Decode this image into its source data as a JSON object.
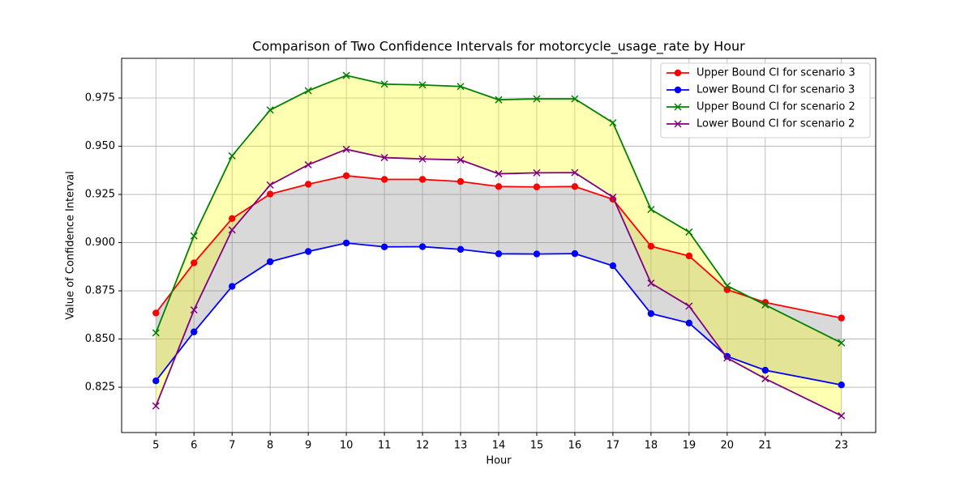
{
  "chart_data": {
    "type": "line",
    "title": "Comparison of Two Confidence Intervals for motorcycle_usage_rate by Hour",
    "x_label": "Hour",
    "y_label": "Value of Confidence Interval",
    "x": [
      5,
      6,
      7,
      8,
      9,
      10,
      11,
      12,
      13,
      14,
      15,
      16,
      17,
      18,
      19,
      20,
      21,
      23
    ],
    "xlim": [
      4.1,
      23.9
    ],
    "xticks": [
      5,
      6,
      7,
      8,
      9,
      10,
      11,
      12,
      13,
      14,
      15,
      16,
      17,
      18,
      19,
      20,
      21,
      23
    ],
    "ylim": [
      0.8015,
      0.9956
    ],
    "yticks": [
      0.825,
      {
        "value": 0.85,
        "label": "0.850"
      },
      0.875,
      {
        "value": 0.9,
        "label": "0.900"
      },
      0.925,
      {
        "value": 0.95,
        "label": "0.950"
      },
      0.975
    ],
    "grid": true,
    "legend": "upper right",
    "series": [
      {
        "name": "Upper Bound CI for scenario 3",
        "color": "red",
        "marker": "o",
        "band_color": "gray",
        "band_alpha": 0.3,
        "values": [
          0.8635,
          0.8895,
          0.9125,
          0.9252,
          0.9303,
          0.9347,
          0.9328,
          0.9328,
          0.9317,
          0.9291,
          0.9289,
          0.9291,
          0.9225,
          0.8981,
          0.8931,
          0.8756,
          0.869,
          0.8609
        ]
      },
      {
        "name": "Lower Bound CI for scenario 3",
        "color": "blue",
        "marker": "o",
        "values": [
          0.8283,
          0.8537,
          0.8773,
          0.8901,
          0.8954,
          0.8998,
          0.8978,
          0.8979,
          0.8965,
          0.8942,
          0.8941,
          0.8943,
          0.888,
          0.8632,
          0.8583,
          0.841,
          0.8338,
          0.8262
        ]
      },
      {
        "name": "Upper Bound CI for scenario 2",
        "color": "green",
        "marker": "x",
        "band_color": "yellow",
        "band_alpha": 0.3,
        "values": [
          0.8532,
          0.9035,
          0.945,
          0.9688,
          0.9788,
          0.9867,
          0.9822,
          0.9818,
          0.981,
          0.9741,
          0.9746,
          0.9746,
          0.9622,
          0.9172,
          0.9055,
          0.8776,
          0.8677,
          0.848
        ]
      },
      {
        "name": "Lower Bound CI for scenario 2",
        "color": "purple",
        "marker": "x",
        "values": [
          0.8153,
          0.8651,
          0.9066,
          0.9299,
          0.9404,
          0.9484,
          0.9441,
          0.9434,
          0.9429,
          0.9357,
          0.9362,
          0.9363,
          0.9236,
          0.879,
          0.8671,
          0.8402,
          0.8294,
          0.8102
        ]
      }
    ]
  }
}
